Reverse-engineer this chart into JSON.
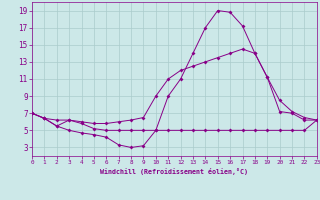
{
  "bg_color": "#cce8e8",
  "grid_color": "#aacccc",
  "line_color": "#880088",
  "xlim": [
    0,
    23
  ],
  "ylim": [
    2,
    20
  ],
  "xticks": [
    0,
    1,
    2,
    3,
    4,
    5,
    6,
    7,
    8,
    9,
    10,
    11,
    12,
    13,
    14,
    15,
    16,
    17,
    18,
    19,
    20,
    21,
    22,
    23
  ],
  "yticks": [
    3,
    5,
    7,
    9,
    11,
    13,
    15,
    17,
    19
  ],
  "xlabel": "Windchill (Refroidissement éolien,°C)",
  "line1_x": [
    0,
    1,
    2,
    3,
    4,
    5,
    6,
    7,
    8,
    9,
    10,
    11,
    12,
    13,
    14,
    15,
    16,
    17,
    18,
    19,
    20,
    21,
    22,
    23
  ],
  "line1_y": [
    7.0,
    6.4,
    5.5,
    6.2,
    5.8,
    5.2,
    5.0,
    5.0,
    5.0,
    5.0,
    5.0,
    5.0,
    5.0,
    5.0,
    5.0,
    5.0,
    5.0,
    5.0,
    5.0,
    5.0,
    5.0,
    5.0,
    5.0,
    6.2
  ],
  "line2_x": [
    0,
    1,
    2,
    3,
    4,
    5,
    6,
    7,
    8,
    9,
    10,
    11,
    12,
    13,
    14,
    15,
    16,
    17,
    18,
    19,
    20,
    21,
    22,
    23
  ],
  "line2_y": [
    7.0,
    6.4,
    5.5,
    5.0,
    4.7,
    4.5,
    4.2,
    3.3,
    3.0,
    3.2,
    5.0,
    9.0,
    11.0,
    14.0,
    17.0,
    19.0,
    18.8,
    17.2,
    14.0,
    11.2,
    7.2,
    7.0,
    6.2,
    6.2
  ],
  "line3_x": [
    0,
    1,
    2,
    3,
    4,
    5,
    6,
    7,
    8,
    9,
    10,
    11,
    12,
    13,
    14,
    15,
    16,
    17,
    18,
    19,
    20,
    21,
    22,
    23
  ],
  "line3_y": [
    7.0,
    6.4,
    6.2,
    6.2,
    6.0,
    5.8,
    5.8,
    6.0,
    6.2,
    6.5,
    9.0,
    11.0,
    12.0,
    12.5,
    13.0,
    13.5,
    14.0,
    14.5,
    14.0,
    11.2,
    8.5,
    7.2,
    6.5,
    6.2
  ],
  "markersize": 2.0,
  "linewidth": 0.7,
  "xlabel_fontsize": 4.8,
  "tick_fontsize_x": 4.3,
  "tick_fontsize_y": 5.5
}
